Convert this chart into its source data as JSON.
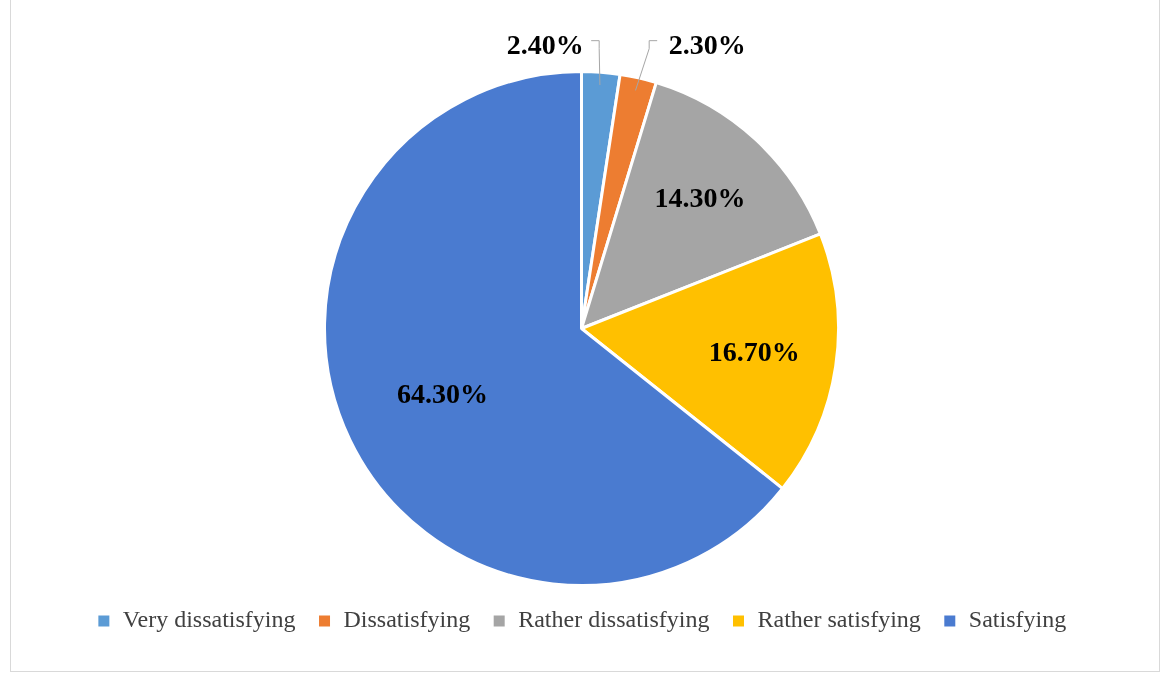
{
  "chart_data": {
    "type": "pie",
    "categories": [
      "Very dissatisfying",
      "Dissatisfying",
      "Rather dissatisfying",
      "Rather satisfying",
      "Satisfying"
    ],
    "values": [
      2.4,
      2.3,
      14.3,
      16.7,
      64.3
    ],
    "colors": [
      "#5b9bd5",
      "#ed7d31",
      "#a5a5a5",
      "#ffc000",
      "#4a7bd0"
    ],
    "value_labels": [
      "2.40%",
      "2.30%",
      "14.30%",
      "16.70%",
      "64.30%"
    ],
    "legend": "bottom"
  }
}
